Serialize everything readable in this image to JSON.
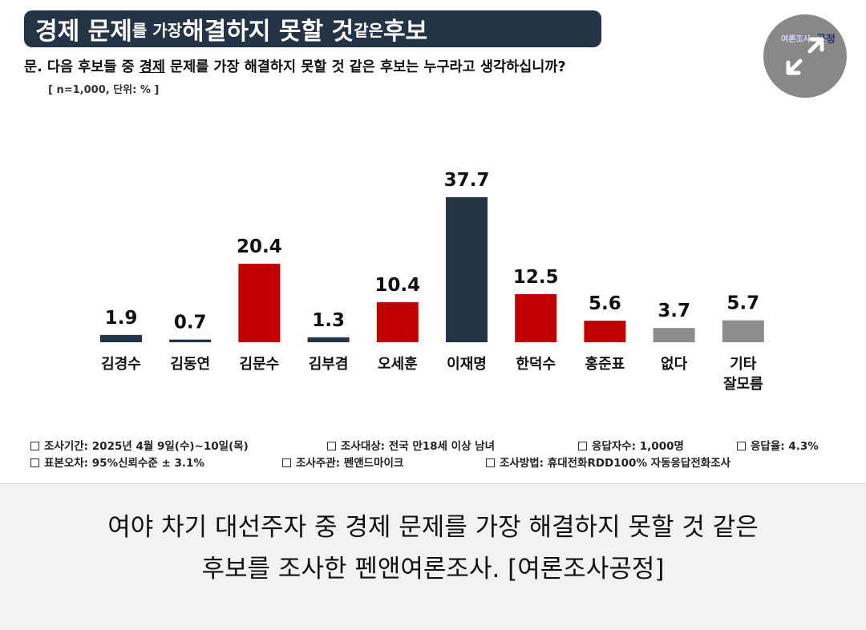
{
  "title": {
    "part1": "경제 문제",
    "part2": "를 가장 ",
    "part3": "해결하지 못할 것 ",
    "part4": "같은 ",
    "part5": "후보"
  },
  "question": {
    "prefix": "문. 다음 후보들 중 ",
    "underlined": "경제",
    "suffix": " 문제를 가장 해결하지 못할 것 같은 후보는 누구라고 생각하십니까?"
  },
  "sample_note": "[ n=1,000, 단위: % ]",
  "logo": {
    "text_small": "여론조사",
    "text_brand": "공정",
    "icon": "expand-arrows-icon"
  },
  "chart_data": {
    "type": "bar",
    "categories": [
      "김경수",
      "김동연",
      "김문수",
      "김부겸",
      "오세훈",
      "이재명",
      "한덕수",
      "홍준표",
      "없다",
      "기타 잘모름"
    ],
    "category_lines": [
      [
        "김경수"
      ],
      [
        "김동연"
      ],
      [
        "김문수"
      ],
      [
        "김부겸"
      ],
      [
        "오세훈"
      ],
      [
        "이재명"
      ],
      [
        "한덕수"
      ],
      [
        "홍준표"
      ],
      [
        "없다"
      ],
      [
        "기타",
        "잘모름"
      ]
    ],
    "values": [
      1.9,
      0.7,
      20.4,
      1.3,
      10.4,
      37.7,
      12.5,
      5.6,
      3.7,
      5.7
    ],
    "value_labels": [
      "1.9",
      "0.7",
      "20.4",
      "1.3",
      "10.4",
      "37.7",
      "12.5",
      "5.6",
      "3.7",
      "5.7"
    ],
    "colors": [
      "#253346",
      "#253346",
      "#c00000",
      "#253346",
      "#c00000",
      "#253346",
      "#c00000",
      "#c00000",
      "#8c8c8c",
      "#8c8c8c"
    ],
    "ylim": [
      0,
      40
    ],
    "grid": false,
    "legend": "none"
  },
  "footnotes": {
    "row1": [
      "조사기간: 2025년 4월 9일(수)~10일(목)",
      "조사대상: 전국 만18세 이상 남녀",
      "응답자수: 1,000명",
      "응답율: 4.3%"
    ],
    "row2": [
      "표본오차: 95%신뢰수준 ± 3.1%",
      "조사주관: 펜앤드마이크",
      "조사방법: 휴대전화RDD100% 자동응답전화조사"
    ]
  },
  "caption": {
    "line1": "여야 차기 대선주자 중 경제 문제를 가장 해결하지 못할 것 같은",
    "line2": "후보를 조사한 펜앤여론조사. [여론조사공정]"
  }
}
